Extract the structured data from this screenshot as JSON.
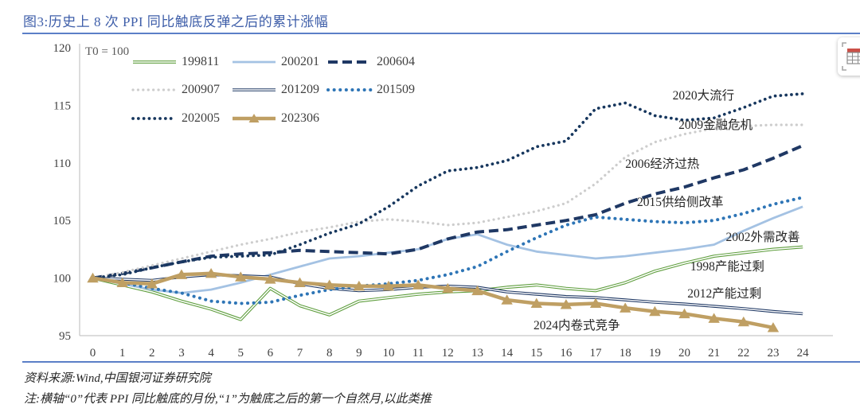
{
  "title": "图3:历史上 8 次 PPI 同比触底反弹之后的累计涨幅",
  "footer": {
    "source": "资料来源:Wind,中国银河证券研究院",
    "note": "注:横轴“0”代表 PPI 同比触底的月份,“1”为触底之后的第一个自然月,以此类推"
  },
  "icons": {
    "table_tool": "table-grid-with-red-header-and-corner-brackets"
  },
  "colors": {
    "title_blue": "#3e5ea9",
    "rule_blue": "#5b7fc7",
    "axis_gray": "#c6c6c6",
    "tick_text": "#404040",
    "annotation_text": "#262626",
    "green": "#5f9e3e",
    "light_blue": "#a4c2e3",
    "navy": "#1f3864",
    "navy_dot": "#17375e",
    "gray_dot": "#cdcdcd",
    "bright_blue": "#2e75b6",
    "tan": "#bf9f63"
  },
  "chart_data": {
    "type": "line",
    "title": "历史上8次PPI同比触底反弹之后的累计涨幅",
    "corner_label": "T0 = 100",
    "xlabel": "",
    "ylabel": "",
    "grid": false,
    "legend_position": "inside-top-left",
    "ylim": [
      95,
      120
    ],
    "y_ticks": [
      95,
      100,
      105,
      110,
      115,
      120
    ],
    "xlim": [
      0,
      24
    ],
    "x_ticks": [
      0,
      1,
      2,
      3,
      4,
      5,
      6,
      7,
      8,
      9,
      10,
      11,
      12,
      13,
      14,
      15,
      16,
      17,
      18,
      19,
      20,
      21,
      22,
      23,
      24
    ],
    "series": [
      {
        "name": "199811",
        "style": "outline",
        "color": "#5f9e3e",
        "width": 3.8,
        "values": [
          100,
          99.4,
          98.8,
          98.0,
          97.3,
          96.4,
          99.1,
          97.6,
          96.8,
          98.0,
          98.3,
          98.6,
          98.8,
          98.9,
          99.2,
          99.4,
          99.1,
          98.9,
          99.6,
          100.6,
          101.3,
          101.9,
          102.2,
          102.5,
          102.7
        ]
      },
      {
        "name": "200201",
        "style": "solid",
        "color": "#a4c2e3",
        "width": 2.8,
        "values": [
          100,
          99.5,
          99.0,
          98.7,
          99.0,
          99.6,
          100.3,
          101.0,
          101.7,
          101.9,
          102.2,
          102.5,
          103.4,
          103.8,
          102.9,
          102.3,
          102.0,
          101.7,
          101.9,
          102.2,
          102.5,
          102.9,
          104.1,
          105.2,
          106.2
        ]
      },
      {
        "name": "200604",
        "style": "dashed",
        "color": "#1f3864",
        "width": 4,
        "dash": "12 6",
        "values": [
          100,
          100.4,
          100.9,
          101.4,
          101.9,
          102.1,
          102.2,
          102.4,
          102.3,
          102.2,
          102.1,
          102.5,
          103.4,
          104.0,
          104.2,
          104.6,
          105.0,
          105.5,
          106.5,
          107.3,
          107.9,
          108.7,
          109.4,
          110.4,
          111.5
        ]
      },
      {
        "name": "200907",
        "style": "dotted",
        "color": "#cdcdcd",
        "width": 3.2,
        "dash": "0.1 6.3",
        "values": [
          100,
          100.5,
          101.1,
          101.7,
          102.3,
          102.9,
          103.4,
          104.0,
          104.4,
          104.9,
          105.1,
          104.9,
          104.6,
          104.8,
          105.3,
          105.8,
          106.5,
          108.2,
          110.5,
          111.8,
          112.5,
          113.0,
          113.2,
          113.3,
          113.3
        ]
      },
      {
        "name": "201209",
        "style": "outline",
        "color": "#1f3864",
        "width": 3.6,
        "values": [
          100,
          99.9,
          99.8,
          100.1,
          100.3,
          100.2,
          100.1,
          99.5,
          99.1,
          98.9,
          99.0,
          99.2,
          99.3,
          99.2,
          98.8,
          98.6,
          98.4,
          98.3,
          98.1,
          97.9,
          97.75,
          97.55,
          97.35,
          97.1,
          96.9
        ]
      },
      {
        "name": "201509",
        "style": "dotted",
        "color": "#2e75b6",
        "width": 4,
        "dash": "0.1 7.5",
        "values": [
          100,
          99.6,
          99.1,
          98.7,
          98.0,
          97.8,
          97.9,
          98.5,
          99.0,
          99.3,
          99.5,
          99.8,
          100.3,
          101.0,
          102.3,
          103.5,
          104.6,
          105.3,
          105.1,
          104.9,
          104.8,
          105.0,
          105.6,
          106.4,
          107.0
        ]
      },
      {
        "name": "202005",
        "style": "dotted",
        "color": "#17375e",
        "width": 3.7,
        "dash": "0.1 6.7",
        "values": [
          100,
          100.3,
          100.9,
          101.4,
          101.8,
          101.9,
          102.0,
          102.9,
          103.9,
          104.7,
          106.2,
          108.0,
          109.3,
          109.6,
          110.2,
          111.4,
          111.9,
          114.7,
          115.2,
          114.1,
          113.7,
          113.9,
          114.8,
          115.8,
          116.0
        ]
      },
      {
        "name": "202306",
        "style": "solid",
        "color": "#bf9f63",
        "width": 4.5,
        "marker": "triangle",
        "values": [
          100,
          99.6,
          99.5,
          100.3,
          100.4,
          100.1,
          99.9,
          99.6,
          99.4,
          99.3,
          99.3,
          99.4,
          99.1,
          98.9,
          98.1,
          97.8,
          97.7,
          97.8,
          97.4,
          97.1,
          96.9,
          96.5,
          96.2,
          95.7
        ]
      }
    ],
    "annotations": [
      {
        "text": "2020大流行",
        "x": 19.6,
        "y": 115.9
      },
      {
        "text": "2009金融危机",
        "x": 19.8,
        "y": 113.35
      },
      {
        "text": "2006经济过热",
        "x": 18.0,
        "y": 110.0
      },
      {
        "text": "2015供给侧改革",
        "x": 18.4,
        "y": 106.7
      },
      {
        "text": "2002外需改善",
        "x": 21.4,
        "y": 103.6
      },
      {
        "text": "1998产能过剩",
        "x": 20.2,
        "y": 101.1
      },
      {
        "text": "2012产能过剩",
        "x": 20.1,
        "y": 98.7
      },
      {
        "text": "2024内卷式竞争",
        "x": 14.9,
        "y": 96.0
      }
    ]
  }
}
